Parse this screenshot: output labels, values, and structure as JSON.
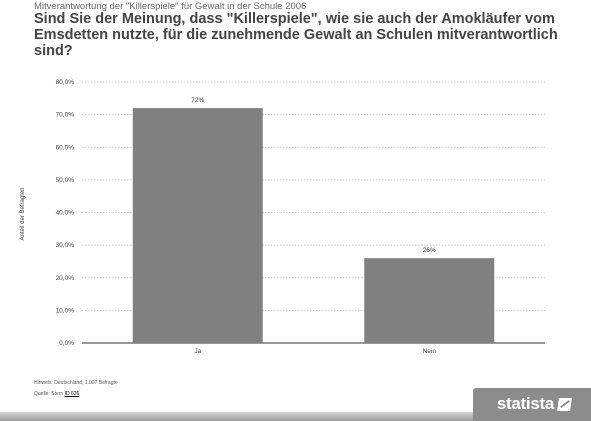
{
  "header": {
    "subtitle": "Mitverantwortung der \"Killerspiele\" für Gewalt in der Schule 2006",
    "title": "Sind Sie der Meinung, dass \"Killerspiele\", wie sie auch der Amokläufer vom Emsdetten nutzte, für die zunehmende Gewalt an Schulen mitverantwortlich sind?"
  },
  "chart_data": {
    "type": "bar",
    "title": "Sind Sie der Meinung, dass \"Killerspiele\", wie sie auch der Amokläufer vom Emsdetten nutzte, für die zunehmende Gewalt an Schulen mitverantwortlich sind?",
    "categories": [
      "Ja",
      "Nein"
    ],
    "values": [
      72,
      26
    ],
    "data_labels": [
      "72%",
      "26%"
    ],
    "xlabel": "",
    "ylabel": "Anteil der Befragten",
    "ylim": [
      0,
      80
    ],
    "yticks": [
      0,
      10,
      20,
      30,
      40,
      50,
      60,
      70,
      80
    ],
    "ytick_labels": [
      "0,0%",
      "10,0%",
      "20,0%",
      "30,0%",
      "40,0%",
      "50,0%",
      "60,0%",
      "70,0%",
      "80,0%"
    ],
    "grid": true,
    "bar_color": "#808080"
  },
  "footer": {
    "note": "Hinweis: Deutschland; 1.007 Befragte",
    "source_prefix": "Quelle: Stern ",
    "source_id": "ID 626"
  },
  "brand": {
    "name": "statista"
  }
}
